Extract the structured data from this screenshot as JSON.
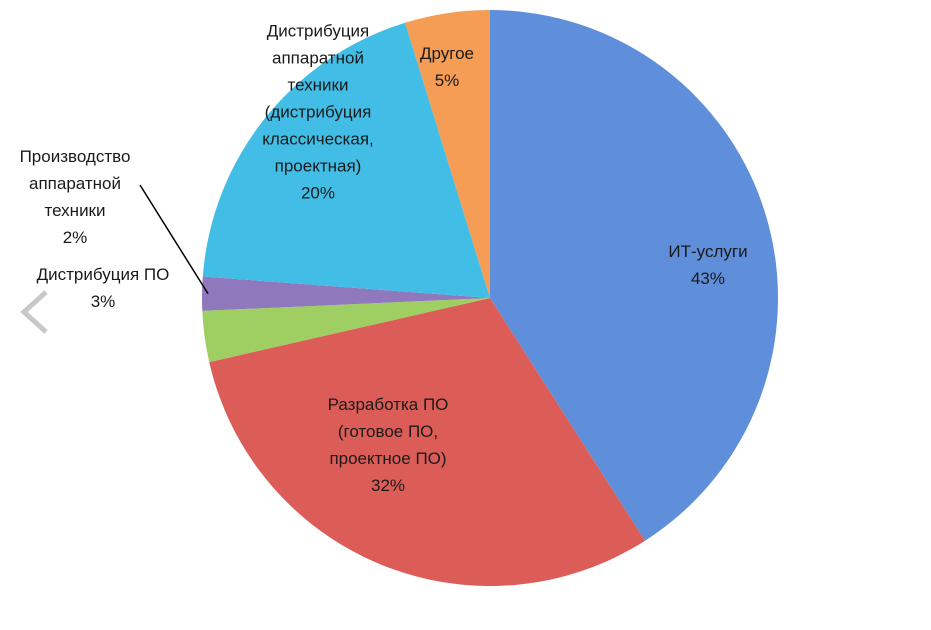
{
  "chart_data": {
    "type": "pie",
    "categories": [
      "ИТ-услуги",
      "Разработка ПО\n(готовое ПО,\nпроектное ПО)",
      "Дистрибуция ПО",
      "Производство\nаппаратной\nтехники",
      "Дистрибуция\nаппаратной\nтехники\n(дистрибуция\nклассическая,\nпроектная)",
      "Другое"
    ],
    "values": [
      43,
      32,
      3,
      2,
      20,
      5
    ],
    "value_labels": [
      "43%",
      "32%",
      "3%",
      "2%",
      "20%",
      "5%"
    ],
    "colors": [
      "#5f8fdb",
      "#dc5d58",
      "#9fcf63",
      "#8f78bb",
      "#41bde6",
      "#f59c55"
    ]
  }
}
